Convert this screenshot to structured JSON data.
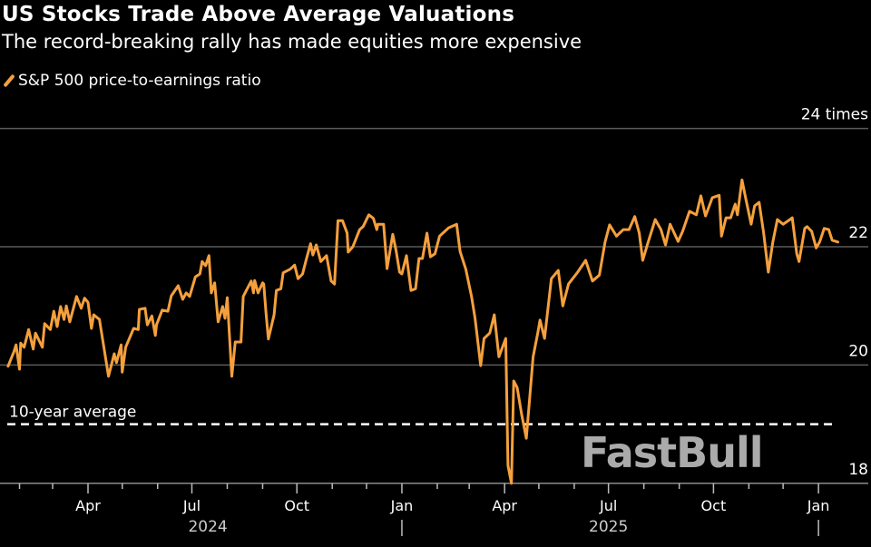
{
  "chart_data": {
    "type": "line",
    "title": "US Stocks Trade Above Average Valuations",
    "subtitle": "The record-breaking rally has made equities more expensive",
    "legend": [
      {
        "name": "S&P 500 price-to-earnings ratio",
        "color": "#f5a03c"
      }
    ],
    "legend_placement": "top-left",
    "ylim": [
      18,
      24
    ],
    "y_ticks": [
      {
        "value": 24,
        "label": "24 times"
      },
      {
        "value": 22,
        "label": "22"
      },
      {
        "value": 20,
        "label": "20"
      },
      {
        "value": 18,
        "label": "18"
      }
    ],
    "grid": true,
    "reference_line": {
      "label": "10-year average",
      "value": 19.0,
      "style": "dashed",
      "color": "#ffffff"
    },
    "x_month_ticks": [
      "2024-02-01",
      "2024-03-01",
      "2024-04-01",
      "2024-05-01",
      "2024-06-01",
      "2024-07-01",
      "2024-08-01",
      "2024-09-01",
      "2024-10-01",
      "2024-11-01",
      "2024-12-01",
      "2025-01-01",
      "2025-02-01",
      "2025-03-01",
      "2025-04-01",
      "2025-05-01",
      "2025-06-01",
      "2025-07-01",
      "2025-08-01",
      "2025-09-01",
      "2025-10-01",
      "2025-11-01",
      "2025-12-01",
      "2026-01-01"
    ],
    "x_tick_labels": [
      {
        "date": "2024-04-01",
        "label": "Apr"
      },
      {
        "date": "2024-07-01",
        "label": "Jul"
      },
      {
        "date": "2024-10-01",
        "label": "Oct"
      },
      {
        "date": "2025-01-01",
        "label": "Jan"
      },
      {
        "date": "2025-04-01",
        "label": "Apr"
      },
      {
        "date": "2025-07-01",
        "label": "Jul"
      },
      {
        "date": "2025-10-01",
        "label": "Oct"
      },
      {
        "date": "2026-01-01",
        "label": "Jan"
      }
    ],
    "x_year_labels": [
      {
        "date": "2024-07-15",
        "label": "2024"
      },
      {
        "date": "2025-07-01",
        "label": "2025"
      }
    ],
    "x_year_separators": [
      "2025-01-01",
      "2026-01-01"
    ],
    "series": [
      {
        "name": "S&P 500 price-to-earnings ratio",
        "color": "#f5a03c",
        "points": [
          [
            "2024-01-22",
            19.98
          ],
          [
            "2024-01-27",
            20.22
          ],
          [
            "2024-01-29",
            20.34
          ],
          [
            "2024-02-01",
            19.93
          ],
          [
            "2024-02-02",
            20.37
          ],
          [
            "2024-02-05",
            20.3
          ],
          [
            "2024-02-09",
            20.6
          ],
          [
            "2024-02-13",
            20.27
          ],
          [
            "2024-02-15",
            20.54
          ],
          [
            "2024-02-21",
            20.3
          ],
          [
            "2024-02-23",
            20.7
          ],
          [
            "2024-02-28",
            20.6
          ],
          [
            "2024-03-02",
            20.91
          ],
          [
            "2024-03-05",
            20.65
          ],
          [
            "2024-03-08",
            20.99
          ],
          [
            "2024-03-11",
            20.77
          ],
          [
            "2024-03-13",
            21.0
          ],
          [
            "2024-03-16",
            20.73
          ],
          [
            "2024-03-22",
            21.16
          ],
          [
            "2024-03-26",
            20.96
          ],
          [
            "2024-03-29",
            21.13
          ],
          [
            "2024-04-01",
            21.06
          ],
          [
            "2024-04-04",
            20.62
          ],
          [
            "2024-04-06",
            20.85
          ],
          [
            "2024-04-11",
            20.77
          ],
          [
            "2024-04-19",
            19.81
          ],
          [
            "2024-04-24",
            20.19
          ],
          [
            "2024-04-26",
            20.04
          ],
          [
            "2024-04-30",
            20.34
          ],
          [
            "2024-05-01",
            19.88
          ],
          [
            "2024-05-04",
            20.3
          ],
          [
            "2024-05-11",
            20.62
          ],
          [
            "2024-05-15",
            20.6
          ],
          [
            "2024-05-16",
            20.94
          ],
          [
            "2024-05-21",
            20.96
          ],
          [
            "2024-05-23",
            20.68
          ],
          [
            "2024-05-27",
            20.83
          ],
          [
            "2024-05-30",
            20.5
          ],
          [
            "2024-05-31",
            20.68
          ],
          [
            "2024-06-05",
            20.93
          ],
          [
            "2024-06-10",
            20.91
          ],
          [
            "2024-06-13",
            21.17
          ],
          [
            "2024-06-19",
            21.34
          ],
          [
            "2024-06-23",
            21.11
          ],
          [
            "2024-06-26",
            21.22
          ],
          [
            "2024-06-29",
            21.16
          ],
          [
            "2024-07-04",
            21.49
          ],
          [
            "2024-07-08",
            21.54
          ],
          [
            "2024-07-10",
            21.75
          ],
          [
            "2024-07-13",
            21.68
          ],
          [
            "2024-07-16",
            21.85
          ],
          [
            "2024-07-18",
            21.22
          ],
          [
            "2024-07-21",
            21.39
          ],
          [
            "2024-07-24",
            20.73
          ],
          [
            "2024-07-28",
            20.99
          ],
          [
            "2024-07-30",
            20.79
          ],
          [
            "2024-08-01",
            21.14
          ],
          [
            "2024-08-05",
            19.81
          ],
          [
            "2024-08-08",
            20.39
          ],
          [
            "2024-08-13",
            20.39
          ],
          [
            "2024-08-15",
            21.16
          ],
          [
            "2024-08-22",
            21.42
          ],
          [
            "2024-08-24",
            21.22
          ],
          [
            "2024-08-25",
            21.43
          ],
          [
            "2024-08-28",
            21.22
          ],
          [
            "2024-09-01",
            21.39
          ],
          [
            "2024-09-02",
            21.37
          ],
          [
            "2024-09-04",
            20.88
          ],
          [
            "2024-09-06",
            20.44
          ],
          [
            "2024-09-11",
            20.85
          ],
          [
            "2024-09-13",
            21.26
          ],
          [
            "2024-09-17",
            21.29
          ],
          [
            "2024-09-19",
            21.56
          ],
          [
            "2024-09-25",
            21.62
          ],
          [
            "2024-09-29",
            21.69
          ],
          [
            "2024-10-02",
            21.46
          ],
          [
            "2024-10-06",
            21.54
          ],
          [
            "2024-10-09",
            21.77
          ],
          [
            "2024-10-13",
            22.05
          ],
          [
            "2024-10-15",
            21.86
          ],
          [
            "2024-10-18",
            22.03
          ],
          [
            "2024-10-22",
            21.75
          ],
          [
            "2024-10-27",
            21.85
          ],
          [
            "2024-10-31",
            21.42
          ],
          [
            "2024-11-03",
            21.37
          ],
          [
            "2024-11-06",
            22.44
          ],
          [
            "2024-11-10",
            22.44
          ],
          [
            "2024-11-14",
            22.23
          ],
          [
            "2024-11-15",
            21.91
          ],
          [
            "2024-11-19",
            22.0
          ],
          [
            "2024-11-25",
            22.29
          ],
          [
            "2024-11-28",
            22.34
          ],
          [
            "2024-12-03",
            22.54
          ],
          [
            "2024-12-07",
            22.48
          ],
          [
            "2024-12-10",
            22.29
          ],
          [
            "2024-12-11",
            22.38
          ],
          [
            "2024-12-16",
            22.38
          ],
          [
            "2024-12-19",
            21.63
          ],
          [
            "2024-12-24",
            22.21
          ],
          [
            "2024-12-27",
            21.92
          ],
          [
            "2024-12-30",
            21.57
          ],
          [
            "2025-01-01",
            21.54
          ],
          [
            "2025-01-05",
            21.85
          ],
          [
            "2025-01-09",
            21.26
          ],
          [
            "2025-01-13",
            21.29
          ],
          [
            "2025-01-16",
            21.8
          ],
          [
            "2025-01-19",
            21.8
          ],
          [
            "2025-01-23",
            22.23
          ],
          [
            "2025-01-26",
            21.83
          ],
          [
            "2025-01-30",
            21.88
          ],
          [
            "2025-02-03",
            22.18
          ],
          [
            "2025-02-11",
            22.32
          ],
          [
            "2025-02-18",
            22.38
          ],
          [
            "2025-02-21",
            21.92
          ],
          [
            "2025-02-26",
            21.62
          ],
          [
            "2025-03-03",
            21.16
          ],
          [
            "2025-03-06",
            20.8
          ],
          [
            "2025-03-11",
            19.99
          ],
          [
            "2025-03-14",
            20.45
          ],
          [
            "2025-03-19",
            20.54
          ],
          [
            "2025-03-23",
            20.85
          ],
          [
            "2025-03-27",
            20.14
          ],
          [
            "2025-04-02",
            20.45
          ],
          [
            "2025-04-04",
            18.3
          ],
          [
            "2025-04-07",
            18.0
          ],
          [
            "2025-04-09",
            19.73
          ],
          [
            "2025-04-12",
            19.62
          ],
          [
            "2025-04-16",
            19.16
          ],
          [
            "2025-04-20",
            18.76
          ],
          [
            "2025-04-26",
            20.14
          ],
          [
            "2025-04-30",
            20.54
          ],
          [
            "2025-05-02",
            20.76
          ],
          [
            "2025-05-06",
            20.45
          ],
          [
            "2025-05-12",
            21.46
          ],
          [
            "2025-05-18",
            21.6
          ],
          [
            "2025-05-22",
            21.0
          ],
          [
            "2025-05-27",
            21.37
          ],
          [
            "2025-06-04",
            21.57
          ],
          [
            "2025-06-11",
            21.77
          ],
          [
            "2025-06-17",
            21.42
          ],
          [
            "2025-06-23",
            21.52
          ],
          [
            "2025-06-28",
            22.08
          ],
          [
            "2025-07-02",
            22.37
          ],
          [
            "2025-07-08",
            22.18
          ],
          [
            "2025-07-14",
            22.29
          ],
          [
            "2025-07-19",
            22.29
          ],
          [
            "2025-07-24",
            22.51
          ],
          [
            "2025-07-28",
            22.23
          ],
          [
            "2025-07-31",
            21.77
          ],
          [
            "2025-08-04",
            22.03
          ],
          [
            "2025-08-11",
            22.46
          ],
          [
            "2025-08-16",
            22.29
          ],
          [
            "2025-08-20",
            22.03
          ],
          [
            "2025-08-24",
            22.38
          ],
          [
            "2025-08-31",
            22.09
          ],
          [
            "2025-09-04",
            22.26
          ],
          [
            "2025-09-10",
            22.6
          ],
          [
            "2025-09-16",
            22.54
          ],
          [
            "2025-09-20",
            22.86
          ],
          [
            "2025-09-24",
            22.52
          ],
          [
            "2025-09-30",
            22.83
          ],
          [
            "2025-10-06",
            22.87
          ],
          [
            "2025-10-08",
            22.18
          ],
          [
            "2025-10-12",
            22.49
          ],
          [
            "2025-10-16",
            22.49
          ],
          [
            "2025-10-20",
            22.72
          ],
          [
            "2025-10-22",
            22.54
          ],
          [
            "2025-10-26",
            23.13
          ],
          [
            "2025-10-29",
            22.84
          ],
          [
            "2025-11-03",
            22.38
          ],
          [
            "2025-11-06",
            22.69
          ],
          [
            "2025-11-10",
            22.75
          ],
          [
            "2025-11-14",
            22.23
          ],
          [
            "2025-11-18",
            21.57
          ],
          [
            "2025-11-22",
            22.08
          ],
          [
            "2025-11-26",
            22.46
          ],
          [
            "2025-12-01",
            22.38
          ],
          [
            "2025-12-07",
            22.46
          ],
          [
            "2025-12-09",
            22.49
          ],
          [
            "2025-12-13",
            21.88
          ],
          [
            "2025-12-15",
            21.75
          ],
          [
            "2025-12-20",
            22.31
          ],
          [
            "2025-12-22",
            22.34
          ],
          [
            "2025-12-26",
            22.26
          ],
          [
            "2025-12-30",
            21.98
          ],
          [
            "2026-01-02",
            22.08
          ],
          [
            "2026-01-06",
            22.31
          ],
          [
            "2026-01-10",
            22.29
          ],
          [
            "2026-01-13",
            22.11
          ],
          [
            "2026-01-18",
            22.08
          ]
        ]
      }
    ]
  },
  "watermark": "FastBull"
}
